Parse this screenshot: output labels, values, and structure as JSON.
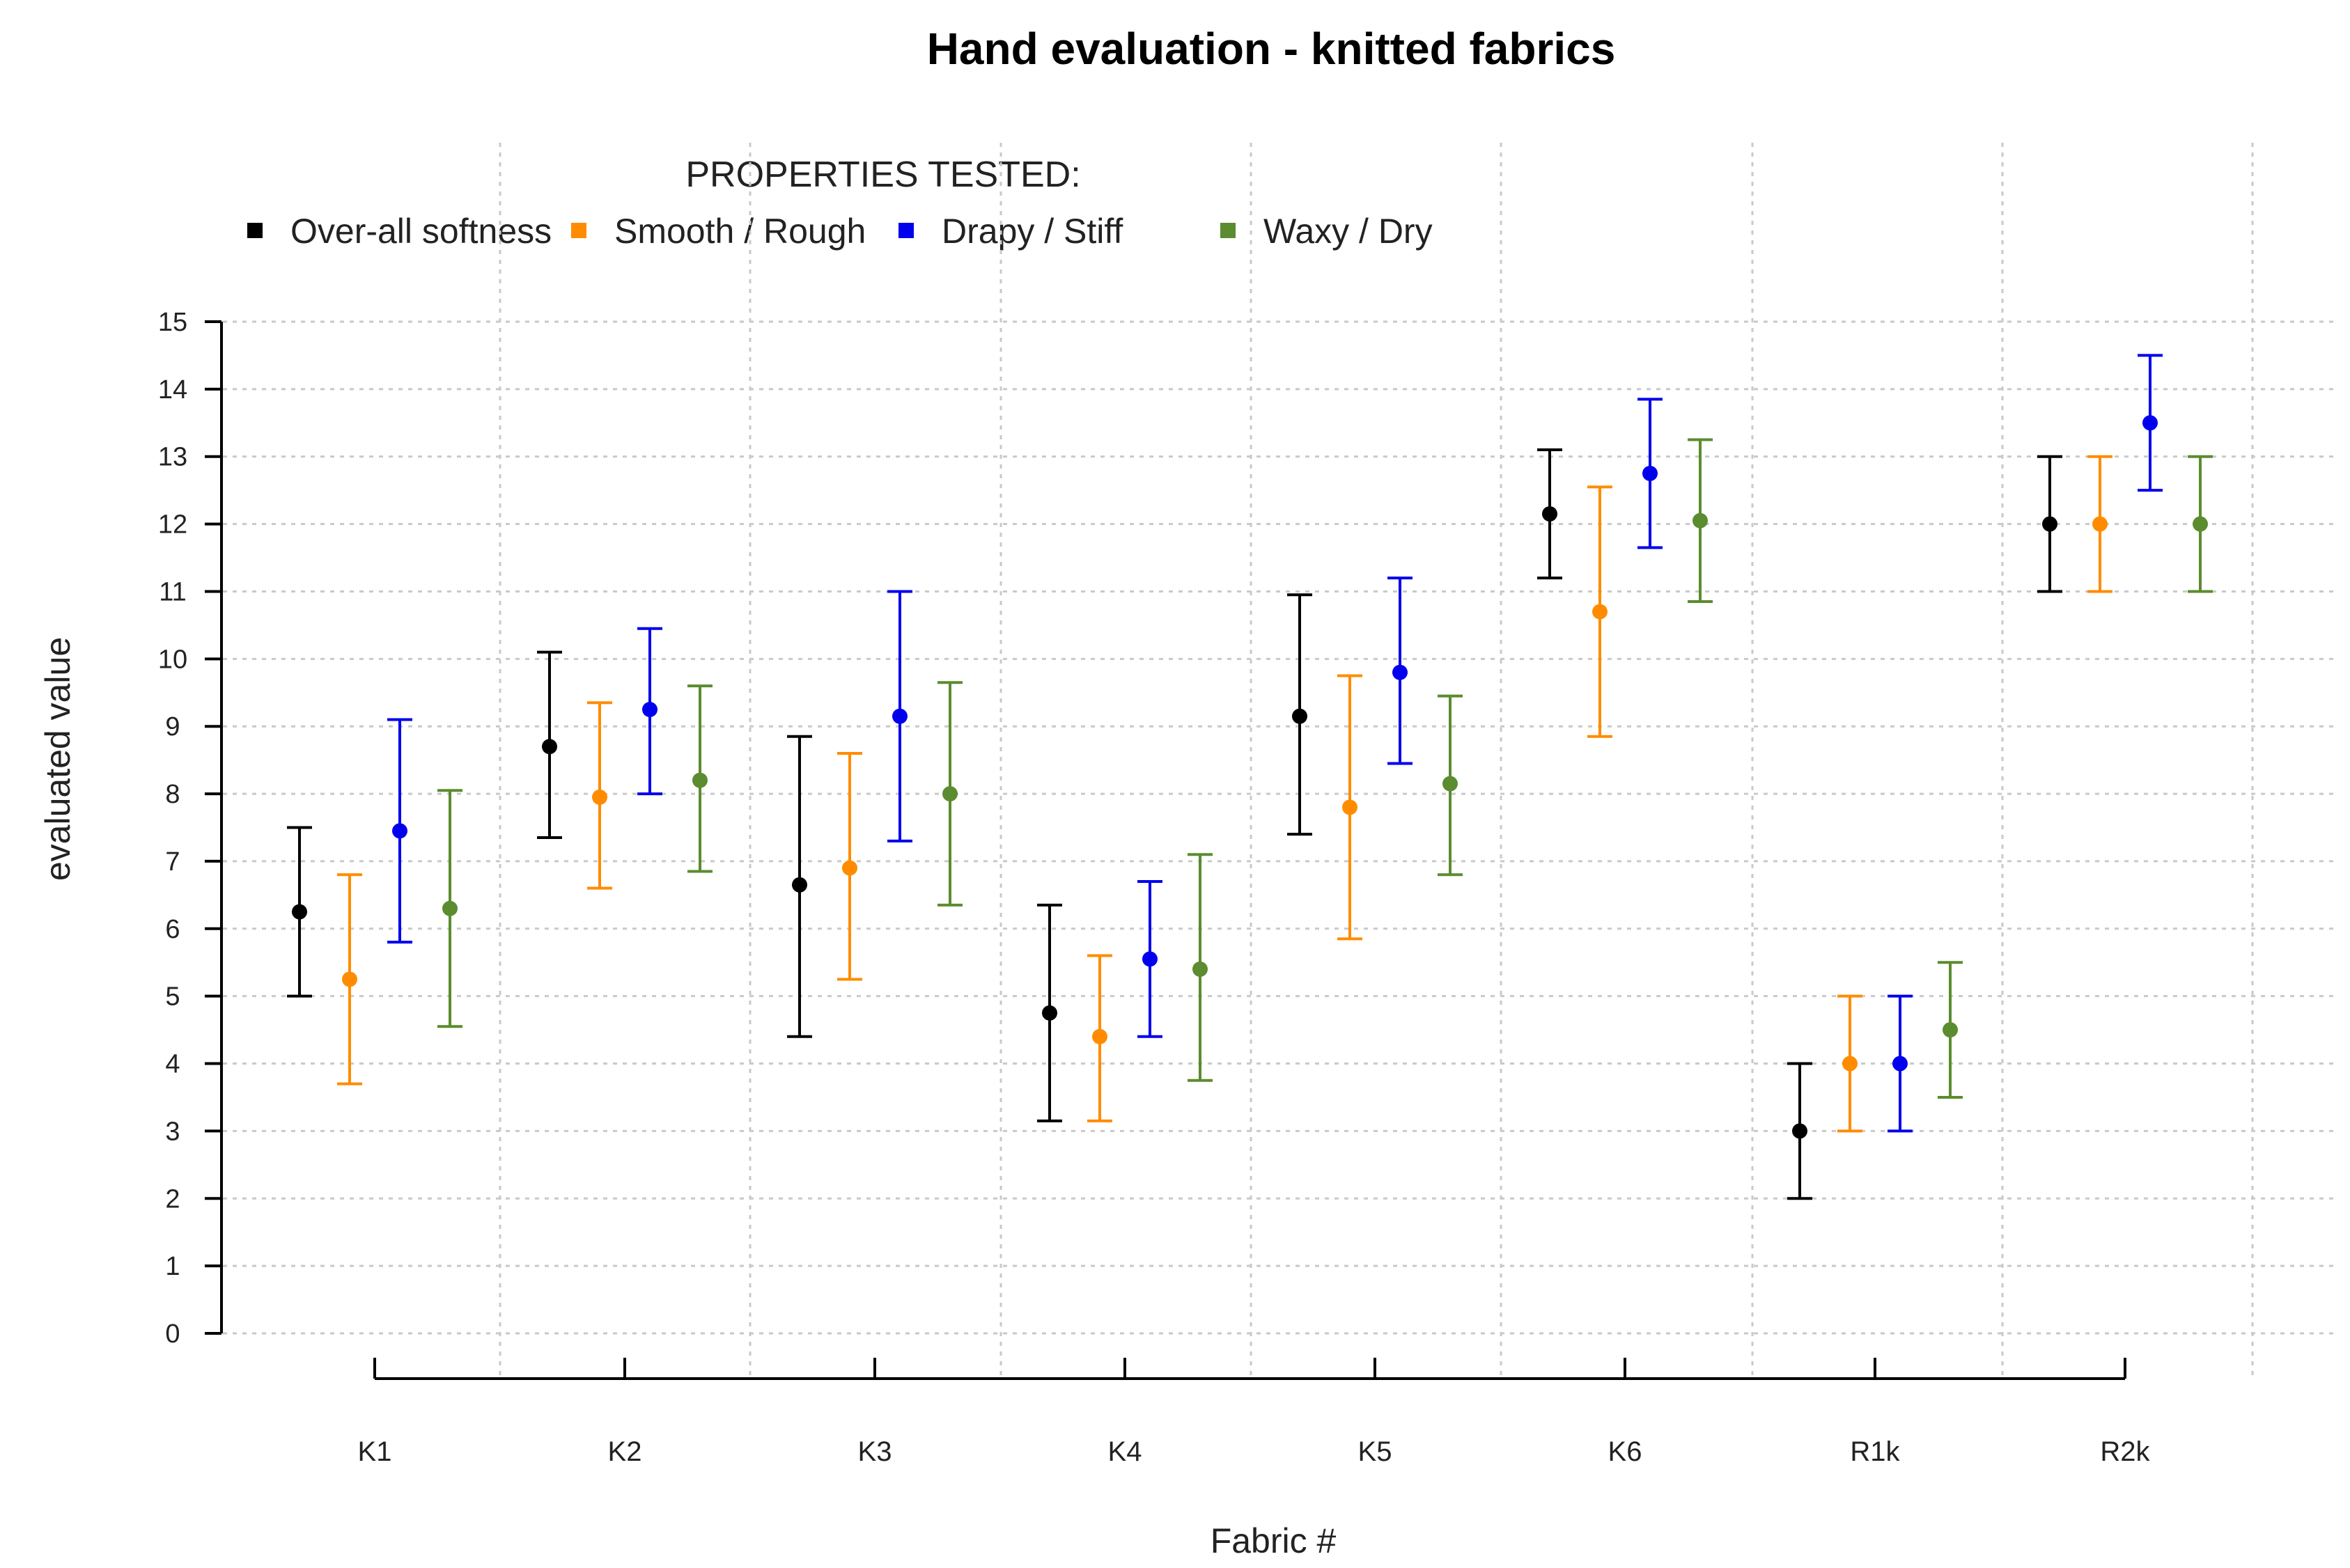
{
  "chart_data": {
    "type": "errorbar",
    "title": "Hand evaluation - knitted fabrics",
    "xlabel": "Fabric #",
    "ylabel": "evaluated value",
    "ylim": [
      0,
      15
    ],
    "yticks": [
      0,
      1,
      2,
      3,
      4,
      5,
      6,
      7,
      8,
      9,
      10,
      11,
      12,
      13,
      14,
      15
    ],
    "grid": true,
    "legend_title": "PROPERTIES TESTED:",
    "legend_position": "top",
    "categories": [
      "K1",
      "K2",
      "K3",
      "K4",
      "K5",
      "K6",
      "R1k",
      "R2k"
    ],
    "series": [
      {
        "name": "Over-all softness",
        "color": "#000000",
        "values": [
          6.25,
          8.7,
          6.65,
          4.75,
          9.15,
          12.15,
          3.0,
          12.0
        ],
        "lower": [
          5.0,
          7.35,
          4.4,
          3.15,
          7.4,
          11.2,
          2.0,
          11.0
        ],
        "upper": [
          7.5,
          10.1,
          8.85,
          6.35,
          10.95,
          13.1,
          4.0,
          13.0
        ]
      },
      {
        "name": "Smooth / Rough",
        "color": "#ff8c00",
        "values": [
          5.25,
          7.95,
          6.9,
          4.4,
          7.8,
          10.7,
          4.0,
          12.0
        ],
        "lower": [
          3.7,
          6.6,
          5.25,
          3.15,
          5.85,
          8.85,
          3.0,
          11.0
        ],
        "upper": [
          6.8,
          9.35,
          8.6,
          5.6,
          9.75,
          12.55,
          5.0,
          13.0
        ]
      },
      {
        "name": "Drapy / Stiff",
        "color": "#0000ee",
        "values": [
          7.45,
          9.25,
          9.15,
          5.55,
          9.8,
          12.75,
          4.0,
          13.5
        ],
        "lower": [
          5.8,
          8.0,
          7.3,
          4.4,
          8.45,
          11.65,
          3.0,
          12.5
        ],
        "upper": [
          9.1,
          10.45,
          11.0,
          6.7,
          11.2,
          13.85,
          5.0,
          14.5
        ]
      },
      {
        "name": "Waxy / Dry",
        "color": "#5b8c2f",
        "values": [
          6.3,
          8.2,
          8.0,
          5.4,
          8.15,
          12.05,
          4.5,
          12.0
        ],
        "lower": [
          4.55,
          6.85,
          6.35,
          3.75,
          6.8,
          10.85,
          3.5,
          11.0
        ],
        "upper": [
          8.05,
          9.6,
          9.65,
          7.1,
          9.45,
          13.25,
          5.5,
          13.0
        ]
      }
    ]
  }
}
